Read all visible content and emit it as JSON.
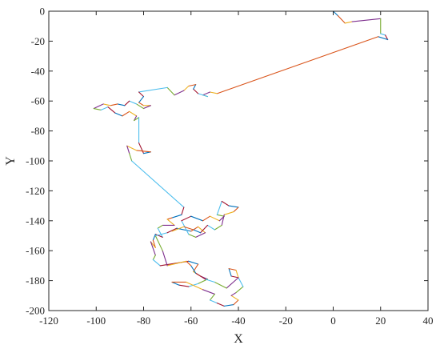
{
  "chart_data": {
    "type": "line",
    "title": "",
    "xlabel": "X",
    "ylabel": "Y",
    "xlim": [
      -120,
      40
    ],
    "ylim": [
      -200,
      0
    ],
    "xticks": [
      -120,
      -100,
      -80,
      -60,
      -40,
      -20,
      0,
      20,
      40
    ],
    "yticks": [
      0,
      -20,
      -40,
      -60,
      -80,
      -100,
      -120,
      -140,
      -160,
      -180,
      -200
    ],
    "grid": false,
    "legend": "none",
    "segment_colors": [
      "#0072BD",
      "#D95319",
      "#EDB120",
      "#7E2F8E",
      "#77AC30",
      "#4DBEEE",
      "#A2142F"
    ],
    "path": [
      [
        0,
        0
      ],
      [
        2,
        -3
      ],
      [
        5,
        -8
      ],
      [
        8,
        -7
      ],
      [
        20,
        -5
      ],
      [
        20,
        -15
      ],
      [
        22,
        -16
      ],
      [
        23,
        -19
      ],
      [
        19,
        -17
      ],
      [
        -49,
        -55
      ],
      [
        -52,
        -54
      ],
      [
        -55,
        -56
      ],
      [
        -53,
        -57
      ],
      [
        -57,
        -55
      ],
      [
        -59,
        -52
      ],
      [
        -58,
        -49
      ],
      [
        -61,
        -50
      ],
      [
        -63,
        -53
      ],
      [
        -67,
        -56
      ],
      [
        -70,
        -51
      ],
      [
        -82,
        -54
      ],
      [
        -80,
        -57
      ],
      [
        -82,
        -61
      ],
      [
        -80,
        -63
      ],
      [
        -77,
        -63
      ],
      [
        -80,
        -65
      ],
      [
        -83,
        -62
      ],
      [
        -86,
        -60
      ],
      [
        -88,
        -63
      ],
      [
        -91,
        -62
      ],
      [
        -94,
        -63
      ],
      [
        -97,
        -62
      ],
      [
        -101,
        -65
      ],
      [
        -98,
        -66
      ],
      [
        -95,
        -64
      ],
      [
        -92,
        -68
      ],
      [
        -89,
        -70
      ],
      [
        -86,
        -67
      ],
      [
        -83,
        -70
      ],
      [
        -84,
        -73
      ],
      [
        -82,
        -71
      ],
      [
        -82,
        -88
      ],
      [
        -80,
        -95
      ],
      [
        -77,
        -94
      ],
      [
        -83,
        -93
      ],
      [
        -87,
        -90
      ],
      [
        -86,
        -95
      ],
      [
        -85,
        -100
      ],
      [
        -63,
        -131
      ],
      [
        -64,
        -136
      ],
      [
        -68,
        -138
      ],
      [
        -70,
        -139
      ],
      [
        -67,
        -143
      ],
      [
        -72,
        -143
      ],
      [
        -74,
        -145
      ],
      [
        -72,
        -151
      ],
      [
        -75,
        -149
      ],
      [
        -76,
        -153
      ],
      [
        -75,
        -158
      ],
      [
        -77,
        -154
      ],
      [
        -75,
        -163
      ],
      [
        -76,
        -166
      ],
      [
        -73,
        -170
      ],
      [
        -61,
        -167
      ],
      [
        -57,
        -169
      ],
      [
        -59,
        -174
      ],
      [
        -56,
        -177
      ],
      [
        -53,
        -179
      ],
      [
        -57,
        -182
      ],
      [
        -61,
        -184
      ],
      [
        -65,
        -183
      ],
      [
        -68,
        -181
      ],
      [
        -62,
        -181
      ],
      [
        -55,
        -186
      ],
      [
        -50,
        -189
      ],
      [
        -52,
        -193
      ],
      [
        -49,
        -195
      ],
      [
        -46,
        -197
      ],
      [
        -42,
        -196
      ],
      [
        -40,
        -193
      ],
      [
        -43,
        -190
      ],
      [
        -41,
        -188
      ],
      [
        -38,
        -184
      ],
      [
        -40,
        -178
      ],
      [
        -43,
        -177
      ],
      [
        -44,
        -172
      ],
      [
        -41,
        -173
      ],
      [
        -40,
        -178
      ],
      [
        -45,
        -185
      ],
      [
        -50,
        -181
      ],
      [
        -54,
        -179
      ],
      [
        -58,
        -175
      ],
      [
        -60,
        -170
      ],
      [
        -62,
        -167
      ],
      [
        -70,
        -170
      ],
      [
        -72,
        -160
      ],
      [
        -75,
        -150
      ],
      [
        -70,
        -148
      ],
      [
        -66,
        -145
      ],
      [
        -60,
        -147
      ],
      [
        -57,
        -144
      ],
      [
        -54,
        -148
      ],
      [
        -58,
        -151
      ],
      [
        -61,
        -149
      ],
      [
        -64,
        -140
      ],
      [
        -60,
        -137
      ],
      [
        -55,
        -140
      ],
      [
        -52,
        -137
      ],
      [
        -48,
        -140
      ],
      [
        -46,
        -137
      ],
      [
        -49,
        -136
      ],
      [
        -47,
        -127
      ],
      [
        -44,
        -130
      ],
      [
        -40,
        -131
      ],
      [
        -42,
        -134
      ],
      [
        -46,
        -136
      ],
      [
        -47,
        -143
      ],
      [
        -50,
        -146
      ],
      [
        -53,
        -143
      ],
      [
        -56,
        -148
      ],
      [
        -59,
        -146
      ],
      [
        -63,
        -144
      ],
      [
        -68,
        -147
      ]
    ]
  }
}
